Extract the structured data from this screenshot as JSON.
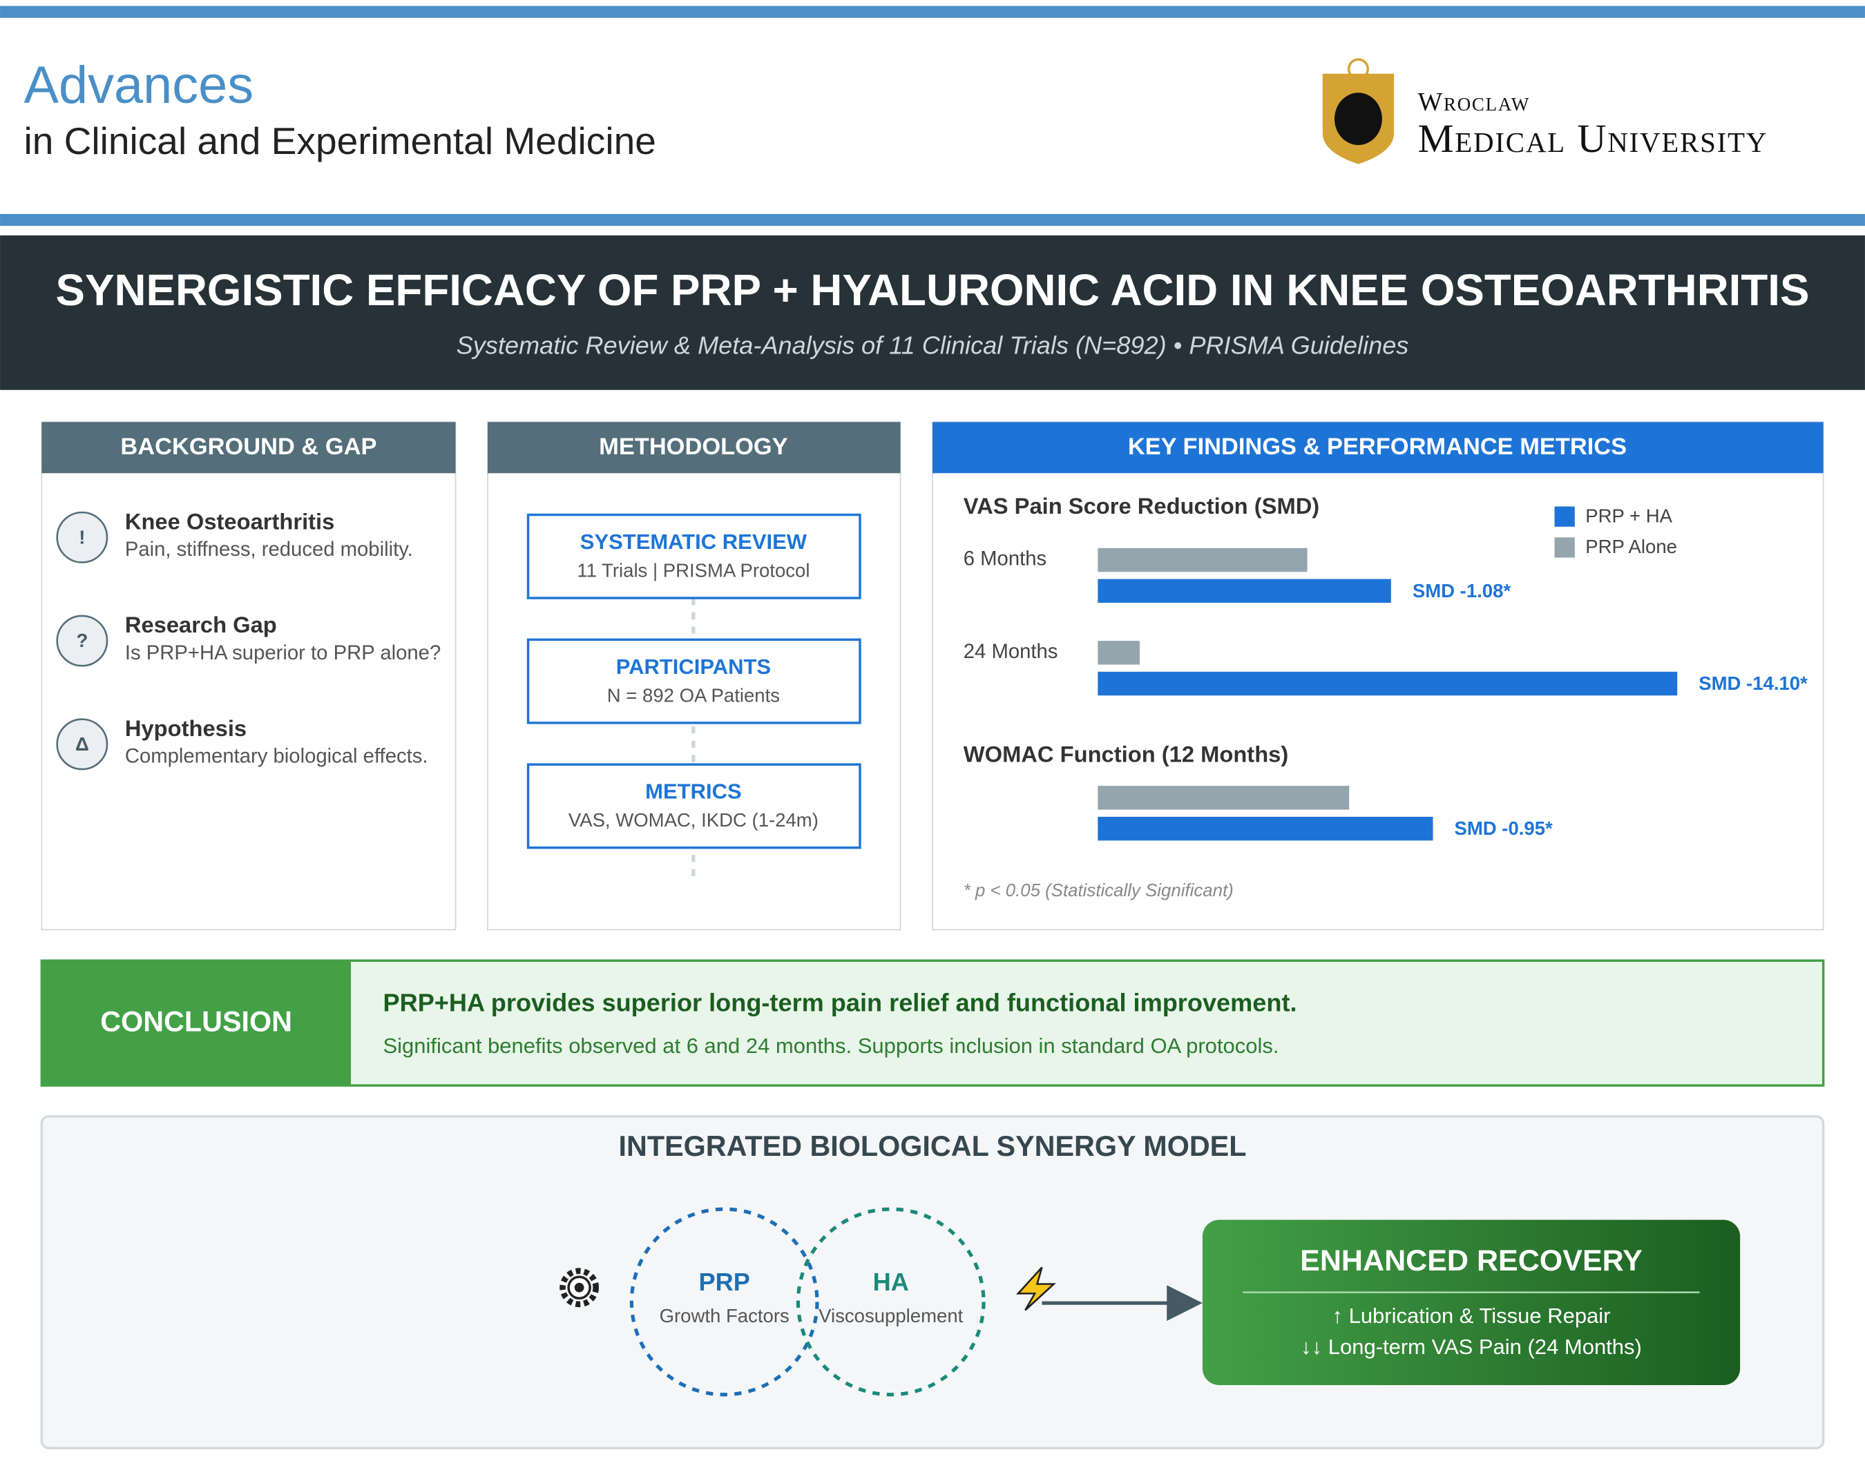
{
  "header": {
    "journal_title": "Advances",
    "journal_subtitle": "in Clinical and Experimental Medicine",
    "university_line1": "Wroclaw",
    "university_line2": "Medical University"
  },
  "banner": {
    "title": "SYNERGISTIC EFFICACY OF PRP + HYALURONIC ACID IN KNEE OSTEOARTHRITIS",
    "subtitle": "Systematic Review & Meta-Analysis of 11 Clinical Trials (N=892) • PRISMA Guidelines"
  },
  "background": {
    "heading": "BACKGROUND & GAP",
    "items": [
      {
        "icon": "!",
        "title": "Knee Osteoarthritis",
        "text": "Pain, stiffness, reduced mobility."
      },
      {
        "icon": "?",
        "title": "Research Gap",
        "text": "Is PRP+HA superior to PRP alone?"
      },
      {
        "icon": "Δ",
        "title": "Hypothesis",
        "text": "Complementary biological effects."
      }
    ]
  },
  "methodology": {
    "heading": "METHODOLOGY",
    "steps": [
      {
        "title": "SYSTEMATIC REVIEW",
        "text": "11 Trials | PRISMA Protocol"
      },
      {
        "title": "PARTICIPANTS",
        "text": "N = 892 OA Patients"
      },
      {
        "title": "METRICS",
        "text": "VAS, WOMAC, IKDC (1-24m)"
      }
    ]
  },
  "findings": {
    "heading": "KEY FINDINGS & PERFORMANCE METRICS"
  },
  "chart_data": [
    {
      "type": "bar",
      "orientation": "horizontal",
      "title": "VAS Pain Score Reduction (SMD)",
      "categories": [
        "6 Months",
        "24 Months"
      ],
      "series": [
        {
          "name": "PRP + HA",
          "color": "#1e74d6",
          "values": [
            42,
            83
          ]
        },
        {
          "name": "PRP Alone",
          "color": "#95a5ae",
          "values": [
            30,
            6
          ]
        }
      ],
      "annotations": [
        "SMD -1.08*",
        "SMD -14.10*"
      ],
      "xlim": [
        0,
        100
      ],
      "legend": "top-right"
    },
    {
      "type": "bar",
      "orientation": "horizontal",
      "title": "WOMAC Function (12 Months)",
      "categories": [
        null
      ],
      "series": [
        {
          "color": "#1e74d6",
          "values": [
            48
          ]
        },
        {
          "color": "#95a5ae",
          "values": [
            36
          ]
        }
      ],
      "annotations": [
        "SMD -0.95*"
      ],
      "note": "* p < 0.05 (Statistically Significant)",
      "xlim": [
        0,
        100
      ]
    }
  ],
  "conclusion": {
    "label": "CONCLUSION",
    "headline": "PRP+HA provides superior long-term pain relief and functional improvement.",
    "text": "Significant benefits observed at 6 and 24 months. Supports inclusion in standard OA protocols."
  },
  "synergy_model": {
    "title": "INTEGRATED BIOLOGICAL SYNERGY MODEL",
    "circles": [
      {
        "label": "PRP",
        "text": "Growth Factors"
      },
      {
        "label": "HA",
        "text": "Viscosupplement"
      }
    ],
    "outcome": {
      "title": "ENHANCED RECOVERY",
      "lines": [
        "↑ Lubrication & Tissue Repair",
        "↓↓ Long-term VAS Pain (24 Months)"
      ]
    }
  }
}
